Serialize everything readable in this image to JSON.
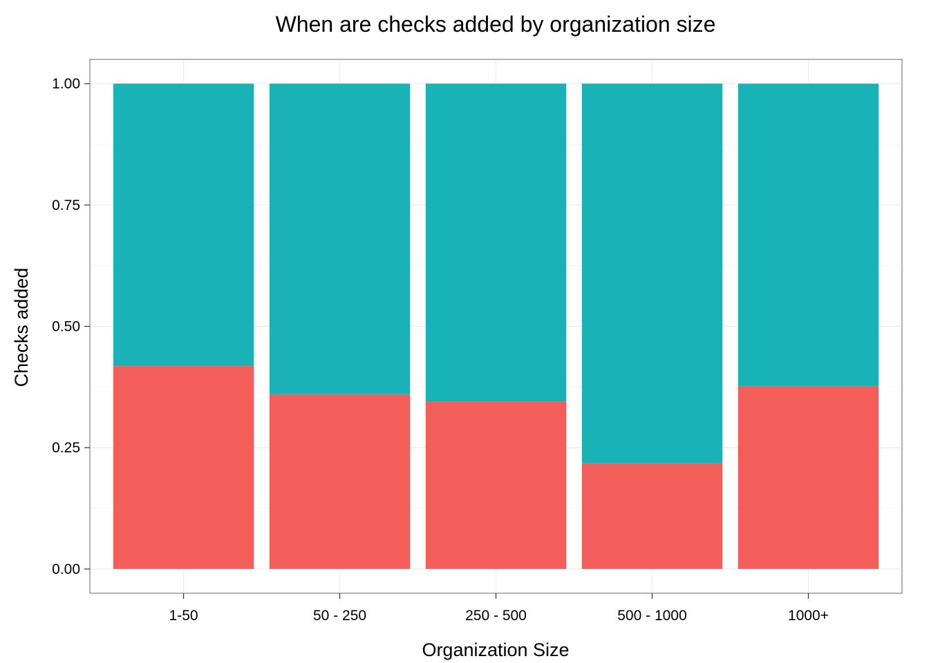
{
  "chart_data": {
    "type": "bar",
    "stacked": true,
    "normalized": true,
    "title": "When are checks added by organization size",
    "xlabel": "Organization Size",
    "ylabel": "Checks added",
    "categories": [
      "1-50",
      "50 - 250",
      "250 - 500",
      "500 - 1000",
      "1000+"
    ],
    "series": [
      {
        "color": "#F35E5A",
        "values": [
          0.418,
          0.36,
          0.345,
          0.218,
          0.376
        ]
      },
      {
        "color": "#19B2B7",
        "values": [
          0.582,
          0.64,
          0.655,
          0.782,
          0.624
        ]
      }
    ],
    "ylim": [
      -0.05,
      1.05
    ],
    "yticks": [
      0.0,
      0.25,
      0.5,
      0.75,
      1.0
    ],
    "ytick_labels": [
      "0.00",
      "0.25",
      "0.50",
      "0.75",
      "1.00"
    ],
    "grid": true,
    "legend": "none",
    "colors": {
      "panel_border": "#7F7F7F",
      "grid_major": "#EBEBEB",
      "grid_minor": "#F5F5F5"
    }
  }
}
